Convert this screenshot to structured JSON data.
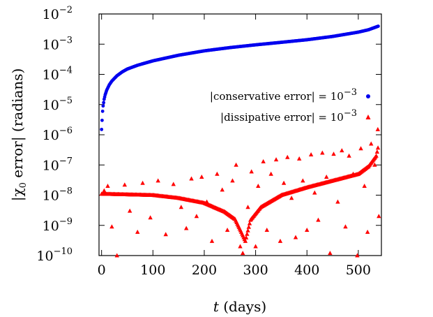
{
  "chart_data": {
    "type": "scatter",
    "xlabel": "t (days)",
    "ylabel": "|χ0 error| (radians)",
    "xlim": [
      -5,
      545
    ],
    "ylim_log10": [
      -10,
      -2
    ],
    "yscale": "log",
    "grid": false,
    "legend_position": "right-middle",
    "x_ticks": [
      0,
      100,
      200,
      300,
      400,
      500
    ],
    "y_tick_exponents": [
      -10,
      -9,
      -8,
      -7,
      -6,
      -5,
      -4,
      -3,
      -2
    ],
    "y_tick_base": "10",
    "series": [
      {
        "name": "|conservative error| = 10^-3",
        "label_text": "|conservative error| = 10",
        "label_exp": "−3",
        "marker": "circle",
        "color": "#0000ee",
        "points": [
          [
            0,
            1.5e-06
          ],
          [
            1,
            3e-06
          ],
          [
            2,
            6e-06
          ],
          [
            3,
            9e-06
          ],
          [
            5,
            1.5e-05
          ],
          [
            7,
            2.1e-05
          ],
          [
            10,
            3e-05
          ],
          [
            15,
            4.5e-05
          ],
          [
            20,
            6e-05
          ],
          [
            30,
            9e-05
          ],
          [
            40,
            0.00012
          ],
          [
            50,
            0.00015
          ],
          [
            70,
            0.0002
          ],
          [
            100,
            0.00028
          ],
          [
            150,
            0.00043
          ],
          [
            200,
            0.0006
          ],
          [
            250,
            0.00077
          ],
          [
            300,
            0.00095
          ],
          [
            350,
            0.00115
          ],
          [
            400,
            0.0014
          ],
          [
            450,
            0.0018
          ],
          [
            500,
            0.0025
          ],
          [
            520,
            0.003
          ],
          [
            540,
            0.004
          ]
        ]
      },
      {
        "name": "|dissipative error| = 10^-3",
        "label_text": "|dissipative error| = 10",
        "label_exp": "−3",
        "marker": "triangle",
        "color": "#ff0000",
        "trend": [
          [
            0,
            1.1e-08
          ],
          [
            50,
            1.05e-08
          ],
          [
            100,
            1e-08
          ],
          [
            150,
            8e-09
          ],
          [
            200,
            5.5e-09
          ],
          [
            240,
            2.8e-09
          ],
          [
            260,
            1.6e-09
          ],
          [
            272,
            6e-10
          ],
          [
            280,
            3e-10
          ],
          [
            290,
            1.5e-09
          ],
          [
            310,
            4e-09
          ],
          [
            350,
            1e-08
          ],
          [
            400,
            1.8e-08
          ],
          [
            450,
            3e-08
          ],
          [
            500,
            5e-08
          ],
          [
            520,
            9e-08
          ],
          [
            535,
            2e-07
          ],
          [
            540,
            5e-07
          ]
        ],
        "scattered": [
          [
            5,
            1.4e-08
          ],
          [
            12,
            2e-08
          ],
          [
            20,
            9e-10
          ],
          [
            30,
            1e-10
          ],
          [
            45,
            2.2e-08
          ],
          [
            55,
            3e-09
          ],
          [
            70,
            6e-10
          ],
          [
            80,
            2.5e-08
          ],
          [
            95,
            1.8e-09
          ],
          [
            110,
            3e-08
          ],
          [
            125,
            5e-10
          ],
          [
            140,
            2.3e-08
          ],
          [
            155,
            4e-09
          ],
          [
            165,
            8e-10
          ],
          [
            175,
            3.5e-08
          ],
          [
            185,
            2e-09
          ],
          [
            195,
            4e-08
          ],
          [
            205,
            6e-09
          ],
          [
            215,
            3e-10
          ],
          [
            225,
            5e-08
          ],
          [
            235,
            1.5e-08
          ],
          [
            245,
            7e-10
          ],
          [
            255,
            3e-08
          ],
          [
            262,
            1e-07
          ],
          [
            270,
            2e-10
          ],
          [
            275,
            1.2e-10
          ],
          [
            285,
            4e-09
          ],
          [
            292,
            6e-08
          ],
          [
            300,
            2e-10
          ],
          [
            305,
            2e-08
          ],
          [
            315,
            1.3e-07
          ],
          [
            322,
            7e-10
          ],
          [
            330,
            5e-08
          ],
          [
            340,
            1.5e-07
          ],
          [
            348,
            3e-10
          ],
          [
            355,
            2.5e-08
          ],
          [
            362,
            1.8e-07
          ],
          [
            370,
            8e-09
          ],
          [
            378,
            4e-10
          ],
          [
            385,
            1.6e-07
          ],
          [
            392,
            3e-08
          ],
          [
            400,
            7e-10
          ],
          [
            408,
            2.2e-07
          ],
          [
            415,
            1.2e-08
          ],
          [
            422,
            1.5e-09
          ],
          [
            430,
            2.5e-07
          ],
          [
            438,
            4e-08
          ],
          [
            445,
            1.2e-10
          ],
          [
            452,
            2.3e-07
          ],
          [
            460,
            6e-09
          ],
          [
            468,
            3e-07
          ],
          [
            475,
            9e-10
          ],
          [
            482,
            2e-07
          ],
          [
            490,
            5e-08
          ],
          [
            498,
            1e-10
          ],
          [
            505,
            3.5e-07
          ],
          [
            512,
            2e-08
          ],
          [
            518,
            6e-10
          ],
          [
            525,
            5e-07
          ],
          [
            532,
            1e-07
          ],
          [
            538,
            1.5e-06
          ],
          [
            540,
            2e-09
          ]
        ]
      }
    ]
  }
}
